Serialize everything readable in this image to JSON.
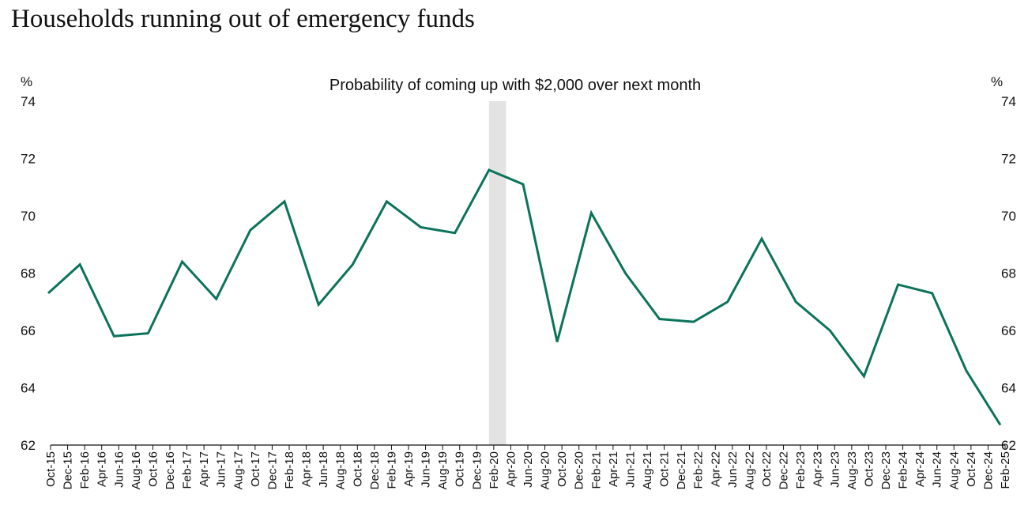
{
  "title": "Households running out of emergency funds",
  "chart_data": {
    "type": "line",
    "title": "Households running out of emergency funds",
    "subtitle": "Probability of coming up with $2,000 over next month",
    "ylabel_left": "%",
    "ylabel_right": "%",
    "ylim": [
      62,
      74
    ],
    "yticks": [
      62,
      64,
      66,
      68,
      70,
      72,
      74
    ],
    "grid": false,
    "line_color": "#0b735a",
    "shade_color": "#e3e3e3",
    "shaded_period": [
      "Feb-20",
      "Apr-20"
    ],
    "x_tick_labels": [
      "Oct-15",
      "Dec-15",
      "Feb-16",
      "Apr-16",
      "Jun-16",
      "Aug-16",
      "Oct-16",
      "Dec-16",
      "Feb-17",
      "Apr-17",
      "Jun-17",
      "Aug-17",
      "Oct-17",
      "Dec-17",
      "Feb-18",
      "Apr-18",
      "Jun-18",
      "Aug-18",
      "Oct-18",
      "Dec-18",
      "Feb-19",
      "Apr-19",
      "Jun-19",
      "Aug-19",
      "Oct-19",
      "Dec-19",
      "Feb-20",
      "Apr-20",
      "Jun-20",
      "Aug-20",
      "Oct-20",
      "Dec-20",
      "Feb-21",
      "Apr-21",
      "Jun-21",
      "Aug-21",
      "Oct-21",
      "Dec-21",
      "Feb-22",
      "Apr-22",
      "Jun-22",
      "Aug-22",
      "Oct-22",
      "Dec-22",
      "Feb-23",
      "Apr-23",
      "Jun-23",
      "Aug-23",
      "Oct-23",
      "Dec-23",
      "Feb-24",
      "Apr-24",
      "Jun-24",
      "Aug-24",
      "Oct-24",
      "Dec-24",
      "Feb-25"
    ],
    "series": [
      {
        "x": [
          "Oct-15",
          "Feb-16",
          "Jun-16",
          "Oct-16",
          "Feb-17",
          "Jun-17",
          "Oct-17",
          "Feb-18",
          "Jun-18",
          "Oct-18",
          "Feb-19",
          "Jun-19",
          "Oct-19",
          "Feb-20",
          "Jun-20",
          "Oct-20",
          "Feb-21",
          "Jun-21",
          "Oct-21",
          "Feb-22",
          "Jun-22",
          "Oct-22",
          "Feb-23",
          "Jun-23",
          "Oct-23",
          "Feb-24",
          "Jun-24",
          "Oct-24",
          "Feb-25"
        ],
        "values": [
          67.3,
          68.3,
          65.8,
          65.9,
          68.4,
          67.1,
          69.5,
          70.5,
          66.9,
          68.3,
          70.5,
          69.6,
          69.4,
          71.6,
          71.1,
          65.6,
          70.1,
          68.0,
          66.4,
          66.3,
          67.0,
          69.2,
          67.0,
          66.0,
          64.4,
          67.6,
          67.3,
          64.6,
          62.7
        ]
      }
    ]
  }
}
